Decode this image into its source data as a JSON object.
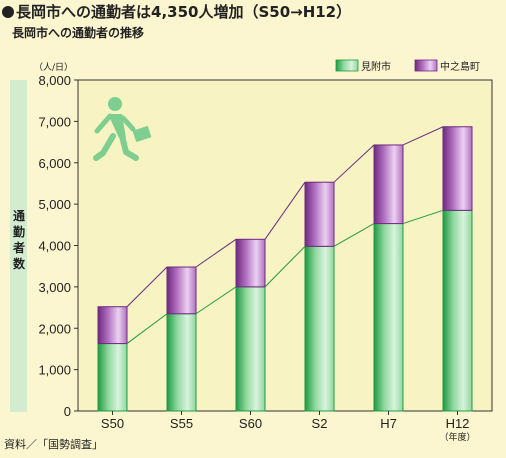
{
  "header": {
    "title": "長岡市への通勤者は4,350人増加（S50→H12）",
    "subtitle": "長岡市への通勤者の推移"
  },
  "source": "資料／「国勢調査」",
  "colors": {
    "background": "#fbf6cf",
    "plot_bg": "#f8f3c2",
    "axis_band": "#d3ecd0",
    "series_green": "#8fd79d",
    "series_green_dark": "#1f9a43",
    "series_purple": "#b271c2",
    "series_purple_dark": "#6e2a7f",
    "line_green": "#1f9a43",
    "line_purple": "#6e2a7f",
    "figure_icon": "#7ecf8f"
  },
  "icon": "walking-commuter-icon",
  "chart_data": {
    "type": "bar",
    "stacked": true,
    "categories": [
      "S50",
      "S55",
      "S60",
      "S2",
      "H7",
      "H12"
    ],
    "category_note": "（年度）",
    "series": [
      {
        "name": "見附市",
        "values": [
          1630,
          2350,
          3000,
          3980,
          4530,
          4850
        ]
      },
      {
        "name": "中之島町",
        "values": [
          890,
          1130,
          1150,
          1550,
          1900,
          2020
        ]
      }
    ],
    "totals": [
      2520,
      3480,
      4150,
      5530,
      6430,
      6870
    ],
    "yunit": "（人/日）",
    "ylabel": "通勤者数",
    "ylim": [
      0,
      8000
    ],
    "yticks": [
      0,
      1000,
      2000,
      3000,
      4000,
      5000,
      6000,
      7000,
      8000
    ],
    "ytick_labels": [
      "0",
      "1,000",
      "2,000",
      "3,000",
      "4,000",
      "5,000",
      "6,000",
      "7,000",
      "8,000"
    ],
    "grid": false,
    "legend_position": "top-right"
  }
}
